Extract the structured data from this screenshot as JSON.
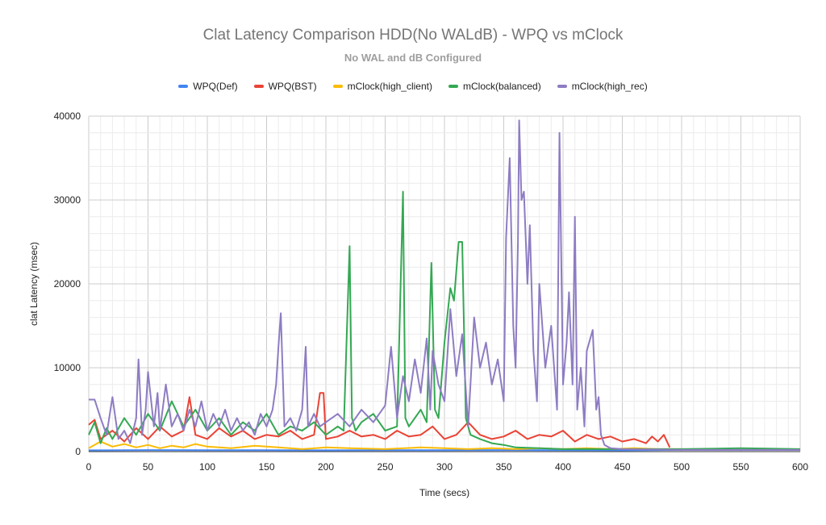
{
  "chart_data": {
    "type": "line",
    "title": "Clat Latency Comparison HDD(No WALdB) - WPQ vs mClock",
    "subtitle": "No WAL and dB Configured",
    "xlabel": "Time (secs)",
    "ylabel": "clat Latency (msec)",
    "xlim": [
      0,
      600
    ],
    "ylim": [
      0,
      40000
    ],
    "x_ticks": [
      "0",
      "50",
      "100",
      "150",
      "200",
      "250",
      "300",
      "350",
      "400",
      "450",
      "500",
      "550",
      "600"
    ],
    "y_ticks": [
      "0",
      "10000",
      "20000",
      "30000",
      "40000"
    ],
    "grid": true,
    "legend_position": "top",
    "series": [
      {
        "name": "WPQ(Def)",
        "color": "#4285f4",
        "x": [
          0,
          50,
          100,
          150,
          200,
          250,
          300,
          350,
          400,
          450,
          500,
          550,
          600
        ],
        "values": [
          150,
          180,
          160,
          170,
          150,
          160,
          170,
          180,
          160,
          150,
          200,
          200,
          200
        ]
      },
      {
        "name": "WPQ(BST)",
        "color": "#ea4335",
        "x": [
          0,
          5,
          10,
          20,
          30,
          40,
          50,
          60,
          70,
          80,
          85,
          90,
          100,
          110,
          120,
          130,
          140,
          150,
          160,
          170,
          180,
          190,
          195,
          198,
          200,
          210,
          220,
          230,
          240,
          250,
          260,
          270,
          280,
          290,
          300,
          310,
          320,
          330,
          340,
          350,
          360,
          370,
          380,
          390,
          400,
          410,
          420,
          430,
          440,
          450,
          460,
          470,
          475,
          480,
          485,
          490
        ],
        "values": [
          3200,
          3800,
          1500,
          2500,
          1200,
          2800,
          1500,
          3000,
          1800,
          2500,
          6500,
          2000,
          1500,
          2800,
          1800,
          2500,
          1500,
          2000,
          1800,
          2500,
          1500,
          2000,
          7000,
          7000,
          1500,
          1800,
          2500,
          1800,
          2000,
          1500,
          2500,
          1800,
          2000,
          3000,
          1500,
          2000,
          3500,
          2000,
          1500,
          1800,
          2500,
          1500,
          2000,
          1800,
          2500,
          1200,
          2000,
          1500,
          1800,
          1200,
          1500,
          1000,
          1800,
          1200,
          2000,
          500
        ]
      },
      {
        "name": "mClock(high_client)",
        "color": "#fbbc04",
        "x": [
          0,
          10,
          20,
          30,
          40,
          50,
          60,
          70,
          80,
          90,
          100,
          120,
          140,
          160,
          180,
          200,
          220,
          250,
          280,
          300,
          320,
          340,
          360,
          380,
          400,
          420,
          440,
          460,
          480,
          490,
          500
        ],
        "values": [
          400,
          1200,
          600,
          900,
          500,
          800,
          400,
          700,
          500,
          900,
          600,
          400,
          700,
          500,
          300,
          500,
          400,
          300,
          500,
          400,
          300,
          400,
          300,
          400,
          300,
          400,
          300,
          400,
          300,
          300,
          300
        ]
      },
      {
        "name": "mClock(balanced)",
        "color": "#34a853",
        "x": [
          0,
          5,
          10,
          15,
          20,
          30,
          40,
          50,
          60,
          70,
          80,
          90,
          100,
          110,
          120,
          130,
          140,
          150,
          160,
          170,
          180,
          190,
          200,
          210,
          215,
          220,
          222,
          225,
          230,
          240,
          250,
          260,
          265,
          267,
          270,
          280,
          285,
          289,
          292,
          295,
          300,
          305,
          308,
          312,
          315,
          318,
          322,
          330,
          340,
          350,
          360,
          380,
          400,
          450,
          500,
          550,
          600
        ],
        "values": [
          2000,
          3500,
          1000,
          2800,
          1500,
          4000,
          2000,
          4500,
          2500,
          6000,
          3000,
          5000,
          2500,
          4000,
          2000,
          3500,
          2500,
          4500,
          2000,
          3000,
          2500,
          3500,
          2000,
          3000,
          2500,
          24500,
          4000,
          2500,
          3500,
          4500,
          2500,
          3000,
          31000,
          4000,
          3000,
          5000,
          3500,
          22500,
          5000,
          4000,
          13000,
          19500,
          18000,
          25000,
          25000,
          4000,
          2000,
          1500,
          1000,
          800,
          500,
          400,
          300,
          300,
          300,
          400,
          300
        ]
      },
      {
        "name": "mClock(high_rec)",
        "color": "#8e7cc3",
        "x": [
          0,
          5,
          10,
          15,
          20,
          25,
          30,
          35,
          40,
          42,
          45,
          48,
          50,
          55,
          58,
          60,
          65,
          70,
          75,
          80,
          85,
          90,
          95,
          100,
          105,
          110,
          115,
          120,
          125,
          130,
          135,
          140,
          145,
          150,
          155,
          158,
          160,
          162,
          165,
          170,
          175,
          180,
          183,
          185,
          190,
          195,
          200,
          210,
          220,
          230,
          240,
          250,
          255,
          260,
          265,
          270,
          275,
          280,
          285,
          288,
          290,
          295,
          300,
          305,
          310,
          315,
          320,
          325,
          330,
          335,
          340,
          345,
          350,
          352,
          355,
          358,
          360,
          362,
          363,
          365,
          367,
          370,
          372,
          375,
          378,
          380,
          385,
          390,
          395,
          397,
          400,
          403,
          405,
          408,
          410,
          412,
          415,
          418,
          420,
          425,
          428,
          430,
          432,
          435,
          440,
          450,
          500,
          600
        ],
        "values": [
          6200,
          6200,
          4000,
          2000,
          6500,
          1500,
          2500,
          1000,
          4000,
          11000,
          2000,
          5000,
          9500,
          3000,
          7000,
          2500,
          8000,
          3000,
          4500,
          2500,
          5000,
          3000,
          6000,
          2500,
          4500,
          3000,
          5000,
          2500,
          4000,
          2500,
          3500,
          2000,
          4500,
          3000,
          5000,
          8000,
          12500,
          16500,
          3000,
          4000,
          2500,
          5000,
          12500,
          3000,
          4500,
          3000,
          3500,
          4500,
          3000,
          5000,
          3500,
          5500,
          12500,
          4000,
          9000,
          6000,
          11000,
          7000,
          13500,
          5000,
          12000,
          8000,
          6000,
          17000,
          9000,
          14000,
          3000,
          16000,
          10000,
          13000,
          8000,
          11000,
          6000,
          25500,
          35000,
          15000,
          10000,
          25000,
          39500,
          30000,
          31000,
          20000,
          27000,
          12000,
          6000,
          20000,
          10000,
          15000,
          5000,
          38000,
          8000,
          13000,
          19000,
          8000,
          28000,
          5000,
          10000,
          3000,
          12000,
          14500,
          5000,
          6500,
          2000,
          800,
          400,
          300,
          200,
          200
        ]
      }
    ]
  }
}
